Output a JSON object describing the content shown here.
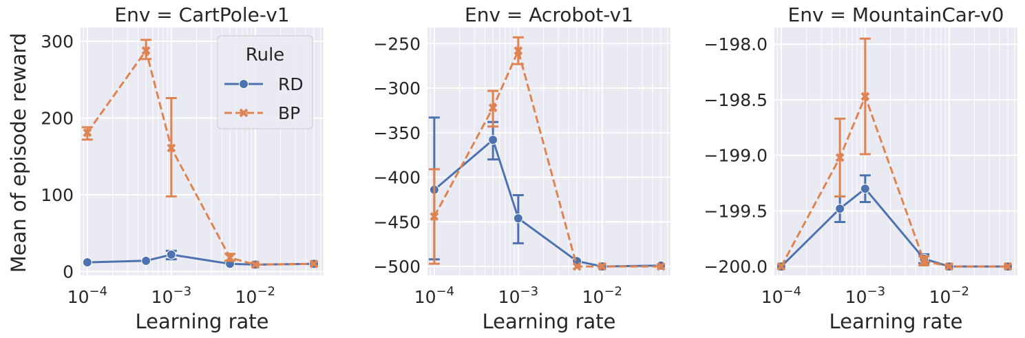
{
  "figure": {
    "ylabel": "Mean of episode reward",
    "legend": {
      "title": "Rule",
      "placement": "upper-right of first panel"
    }
  },
  "chart_data": [
    {
      "type": "line",
      "title": "Env = CartPole-v1",
      "xlabel": "Learning rate",
      "ylabel": "Mean of episode reward",
      "xscale": "log",
      "x": [
        0.0001,
        0.0005,
        0.001,
        0.005,
        0.01,
        0.05
      ],
      "xlim": [
        8.3e-05,
        0.065
      ],
      "ylim": [
        -5,
        318
      ],
      "xticks": [
        0.0001,
        0.001,
        0.01
      ],
      "xtick_labels": [
        "10^-4",
        "10^-3",
        "10^-2"
      ],
      "yticks": [
        0,
        100,
        200,
        300
      ],
      "ytick_labels": [
        "0",
        "100",
        "200",
        "300"
      ],
      "grid": true,
      "legend": true,
      "series": [
        {
          "name": "RD",
          "color": "#4c72b0",
          "dash": "solid",
          "marker": "circle",
          "values": [
            12,
            14,
            22,
            10,
            9,
            10
          ],
          "err_low": [
            null,
            null,
            16,
            null,
            null,
            null
          ],
          "err_high": [
            null,
            null,
            27,
            null,
            null,
            null
          ]
        },
        {
          "name": "BP",
          "color": "#dd8452",
          "dash": "dashed",
          "marker": "x",
          "values": [
            181,
            288,
            161,
            18,
            9,
            10
          ],
          "err_low": [
            172,
            277,
            98,
            14,
            null,
            null
          ],
          "err_high": [
            188,
            302,
            226,
            23,
            null,
            null
          ]
        }
      ]
    },
    {
      "type": "line",
      "title": "Env = Acrobot-v1",
      "xlabel": "Learning rate",
      "xscale": "log",
      "x": [
        0.0001,
        0.0005,
        0.001,
        0.005,
        0.01,
        0.05
      ],
      "xlim": [
        8.3e-05,
        0.065
      ],
      "ylim": [
        -510,
        -232
      ],
      "xticks": [
        0.0001,
        0.001,
        0.01
      ],
      "xtick_labels": [
        "10^-4",
        "10^-3",
        "10^-2"
      ],
      "yticks": [
        -500,
        -450,
        -400,
        -350,
        -300,
        -250
      ],
      "ytick_labels": [
        "−500",
        "−450",
        "−400",
        "−350",
        "−300",
        "−250"
      ],
      "grid": true,
      "legend": false,
      "series": [
        {
          "name": "RD",
          "color": "#4c72b0",
          "dash": "solid",
          "marker": "circle",
          "values": [
            -414,
            -358,
            -446,
            -494,
            -500,
            -499
          ],
          "err_low": [
            -492,
            -380,
            -474,
            null,
            null,
            null
          ],
          "err_high": [
            -333,
            -338,
            -420,
            null,
            null,
            null
          ]
        },
        {
          "name": "BP",
          "color": "#dd8452",
          "dash": "dashed",
          "marker": "x",
          "values": [
            -444,
            -322,
            -258,
            -500,
            -500,
            -500
          ],
          "err_low": [
            -497,
            -343,
            -273,
            null,
            null,
            null
          ],
          "err_high": [
            -391,
            -303,
            -243,
            null,
            null,
            null
          ]
        }
      ]
    },
    {
      "type": "line",
      "title": "Env = MountainCar-v0",
      "xlabel": "Learning rate",
      "xscale": "log",
      "x": [
        0.0001,
        0.0005,
        0.001,
        0.005,
        0.01,
        0.05
      ],
      "xlim": [
        8.3e-05,
        0.065
      ],
      "ylim": [
        -200.08,
        -197.85
      ],
      "xticks": [
        0.0001,
        0.001,
        0.01
      ],
      "xtick_labels": [
        "10^-4",
        "10^-3",
        "10^-2"
      ],
      "yticks": [
        -200.0,
        -199.5,
        -199.0,
        -198.5,
        -198.0
      ],
      "ytick_labels": [
        "−200.0",
        "−199.5",
        "−199.0",
        "−198.5",
        "−198.0"
      ],
      "grid": true,
      "legend": false,
      "series": [
        {
          "name": "RD",
          "color": "#4c72b0",
          "dash": "solid",
          "marker": "circle",
          "values": [
            -200.0,
            -199.48,
            -199.3,
            -199.93,
            -200.0,
            -200.0
          ],
          "err_low": [
            null,
            -199.6,
            -199.42,
            -199.97,
            null,
            null
          ],
          "err_high": [
            null,
            -199.37,
            -199.18,
            -199.89,
            null,
            null
          ]
        },
        {
          "name": "BP",
          "color": "#dd8452",
          "dash": "dashed",
          "marker": "x",
          "values": [
            -200.0,
            -199.02,
            -198.47,
            -199.95,
            -200.0,
            -200.0
          ],
          "err_low": [
            null,
            -199.37,
            -198.99,
            -199.99,
            null,
            null
          ],
          "err_high": [
            null,
            -198.67,
            -197.95,
            -199.91,
            null,
            null
          ]
        }
      ]
    }
  ]
}
